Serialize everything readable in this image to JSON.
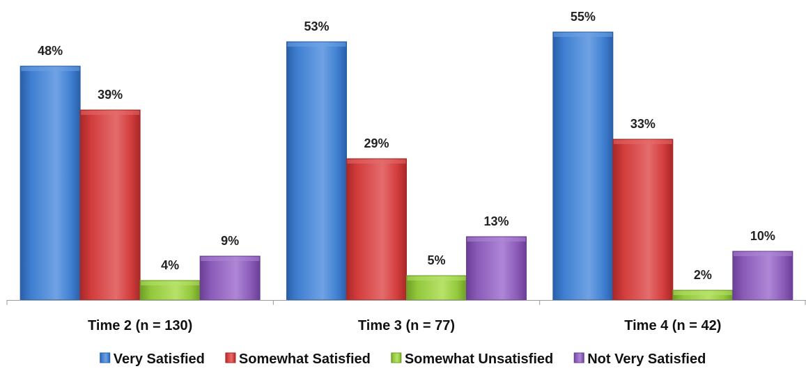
{
  "chart_data": {
    "type": "bar",
    "title": "",
    "xlabel": "",
    "ylabel": "",
    "ylim": [
      0,
      55
    ],
    "grid": false,
    "legend_position": "bottom",
    "categories": [
      "Time 2 (n = 130)",
      "Time 3 (n = 77)",
      "Time 4 (n = 42)"
    ],
    "series": [
      {
        "name": "Very Satisfied",
        "values": [
          48,
          53,
          55
        ],
        "labels": [
          "48%",
          "53%",
          "55%"
        ],
        "color": "#3F7FD1",
        "color_dark": "#2A5FA8",
        "color_light": "#6FA2E4"
      },
      {
        "name": "Somewhat Satisfied",
        "values": [
          39,
          29,
          33
        ],
        "labels": [
          "39%",
          "29%",
          "33%"
        ],
        "color": "#D23C3C",
        "color_dark": "#A82828",
        "color_light": "#E46C6C"
      },
      {
        "name": "Somewhat Unsatisfied",
        "values": [
          4,
          5,
          2
        ],
        "labels": [
          "4%",
          "5%",
          "2%"
        ],
        "color": "#93C83C",
        "color_dark": "#6E9E25",
        "color_light": "#B7E26A"
      },
      {
        "name": "Not Very Satisfied",
        "values": [
          9,
          13,
          10
        ],
        "labels": [
          "9%",
          "13%",
          "10%"
        ],
        "color": "#8A5BB8",
        "color_dark": "#6A3F95",
        "color_light": "#AE86D6"
      }
    ]
  }
}
